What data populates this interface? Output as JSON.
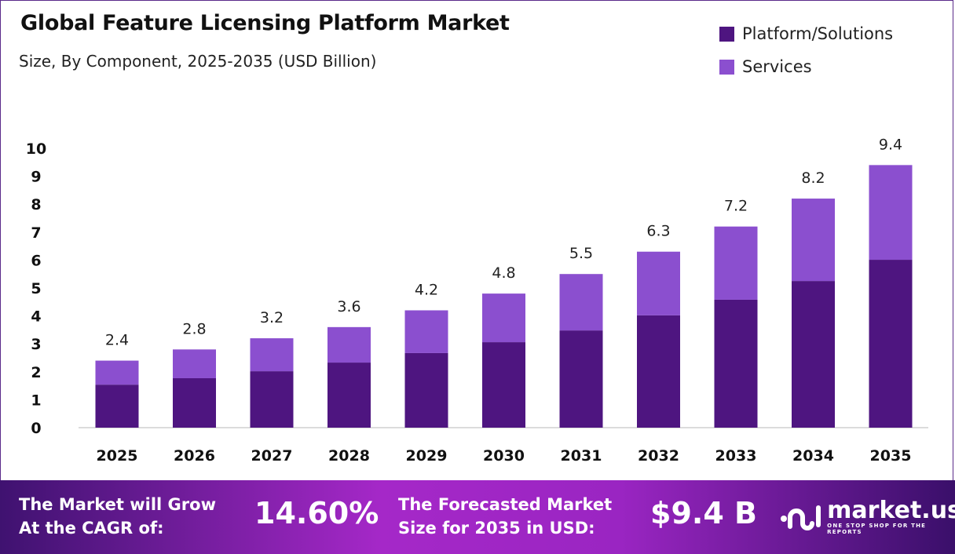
{
  "chart_data": {
    "type": "bar",
    "stacked": true,
    "title": "Global Feature Licensing Platform Market",
    "subtitle": "Size, By Component, 2025-2035 (USD Billion)",
    "categories": [
      "2025",
      "2026",
      "2027",
      "2028",
      "2029",
      "2030",
      "2031",
      "2032",
      "2033",
      "2034",
      "2035"
    ],
    "series": [
      {
        "name": "Platform/Solutions",
        "color": "#4e1580",
        "values": [
          1.54,
          1.77,
          2.02,
          2.33,
          2.67,
          3.06,
          3.48,
          4.02,
          4.58,
          5.25,
          6.01
        ]
      },
      {
        "name": "Services",
        "color": "#8b4fcf",
        "values": [
          0.86,
          1.03,
          1.18,
          1.27,
          1.53,
          1.74,
          2.02,
          2.28,
          2.62,
          2.95,
          3.39
        ]
      }
    ],
    "totals": [
      "2.4",
      "2.8",
      "3.2",
      "3.6",
      "4.2",
      "4.8",
      "5.5",
      "6.3",
      "7.2",
      "8.2",
      "9.4"
    ],
    "yticks": [
      "0",
      "1",
      "2",
      "3",
      "4",
      "5",
      "6",
      "7",
      "8",
      "9",
      "10"
    ],
    "ylim": [
      0,
      10
    ],
    "grid": false,
    "legend_position": "top-right"
  },
  "banner": {
    "cagr_label_1": "The Market will Grow",
    "cagr_label_2": "At the CAGR of:",
    "cagr_value": "14.60%",
    "forecast_label_1": "The Forecasted Market",
    "forecast_label_2": "Size for 2035 in USD:",
    "forecast_value": "$9.4 B",
    "logo_name": "market.us",
    "logo_tagline": "ONE STOP SHOP FOR THE REPORTS"
  }
}
